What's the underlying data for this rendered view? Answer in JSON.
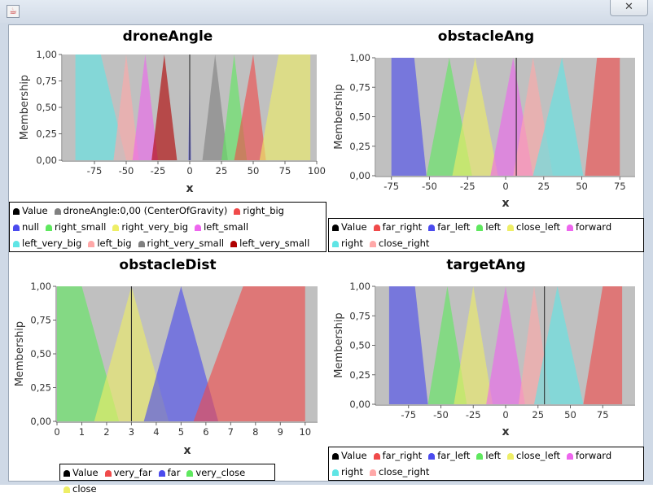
{
  "window": {
    "app_icon": "java-icon",
    "close_glyph": "✕"
  },
  "chart_data": [
    {
      "type": "area",
      "title": "droneAngle",
      "xlabel": "x",
      "ylabel": "Membership",
      "xlim": [
        -100,
        100
      ],
      "ylim": [
        0,
        1
      ],
      "xticks": [
        -75,
        -50,
        -25,
        0,
        25,
        50,
        75,
        100
      ],
      "xtick_labels": [
        "-75",
        "-50",
        "-25",
        "0",
        "25",
        "50",
        "75",
        "100"
      ],
      "yticks": [
        0,
        0.25,
        0.5,
        0.75,
        1
      ],
      "ytick_labels": [
        "0,00",
        "0,25",
        "0,50",
        "0,75",
        "1,00"
      ],
      "value_line": 0.0,
      "legend": [
        "Value",
        "droneAngle:0,00 (CenterOfGravity)",
        "right_big",
        "null",
        "right_small",
        "right_very_big",
        "left_small",
        "left_very_big",
        "left_big",
        "right_very_small",
        "left_very_small"
      ],
      "legend_colors": [
        "#000000",
        "#808080",
        "#f04a4a",
        "#4b4bee",
        "#5fe85f",
        "#eeee66",
        "#ee66ee",
        "#5fe5e5",
        "#ffa8a8",
        "#808080",
        "#b00000"
      ],
      "series": [
        {
          "name": "left_very_big",
          "x": [
            -90,
            -80,
            -70,
            -50
          ],
          "y": [
            1,
            1,
            1,
            0
          ],
          "color": "#5fe5e5"
        },
        {
          "name": "left_big",
          "x": [
            -60,
            -50,
            -40
          ],
          "y": [
            0,
            1,
            0
          ],
          "color": "#ffa8a8"
        },
        {
          "name": "left_small",
          "x": [
            -45,
            -35,
            -25
          ],
          "y": [
            0,
            1,
            0
          ],
          "color": "#ee66ee"
        },
        {
          "name": "left_very_small",
          "x": [
            -30,
            -20,
            -10
          ],
          "y": [
            0,
            1,
            0
          ],
          "color": "#b00000"
        },
        {
          "name": "null",
          "x": [
            -1,
            0,
            1
          ],
          "y": [
            0,
            1,
            0
          ],
          "color": "#4b4bee"
        },
        {
          "name": "right_very_small",
          "x": [
            10,
            20,
            30
          ],
          "y": [
            0,
            1,
            0
          ],
          "color": "#808080"
        },
        {
          "name": "right_small",
          "x": [
            25,
            35,
            45
          ],
          "y": [
            0,
            1,
            0
          ],
          "color": "#5fe85f"
        },
        {
          "name": "right_big",
          "x": [
            35,
            50,
            60
          ],
          "y": [
            0,
            1,
            0
          ],
          "color": "#f04a4a"
        },
        {
          "name": "right_very_big",
          "x": [
            55,
            70,
            95
          ],
          "y": [
            0,
            1,
            1
          ],
          "color": "#eeee66"
        }
      ]
    },
    {
      "type": "area",
      "title": "obstacleAng",
      "xlabel": "x",
      "ylabel": "Membership",
      "xlim": [
        -85,
        85
      ],
      "ylim": [
        0,
        1
      ],
      "xticks": [
        -75,
        -50,
        -25,
        0,
        25,
        50,
        75
      ],
      "xtick_labels": [
        "-75",
        "-50",
        "-25",
        "0",
        "25",
        "50",
        "75"
      ],
      "yticks": [
        0,
        0.25,
        0.5,
        0.75,
        1
      ],
      "ytick_labels": [
        "0,00",
        "0,25",
        "0,50",
        "0,75",
        "1,00"
      ],
      "value_line": 7,
      "legend": [
        "Value",
        "far_right",
        "far_left",
        "left",
        "close_left",
        "forward",
        "right",
        "close_right"
      ],
      "legend_colors": [
        "#000000",
        "#f04a4a",
        "#4b4bee",
        "#5fe85f",
        "#eeee66",
        "#ee66ee",
        "#5fe5e5",
        "#ffa8a8"
      ],
      "series": [
        {
          "name": "far_left",
          "x": [
            -75,
            -67,
            -60,
            -52
          ],
          "y": [
            1,
            1,
            1,
            0
          ],
          "color": "#4b4bee"
        },
        {
          "name": "left",
          "x": [
            -52,
            -37,
            -22
          ],
          "y": [
            0,
            1,
            0
          ],
          "color": "#5fe85f"
        },
        {
          "name": "close_left",
          "x": [
            -35,
            -20,
            -5
          ],
          "y": [
            0,
            1,
            0
          ],
          "color": "#eeee66"
        },
        {
          "name": "forward",
          "x": [
            -10,
            5,
            18
          ],
          "y": [
            0,
            1,
            0
          ],
          "color": "#ee66ee"
        },
        {
          "name": "close_right",
          "x": [
            5,
            18,
            31
          ],
          "y": [
            0,
            1,
            0
          ],
          "color": "#ffa8a8"
        },
        {
          "name": "right",
          "x": [
            18,
            37,
            51
          ],
          "y": [
            0,
            1,
            0
          ],
          "color": "#5fe5e5"
        },
        {
          "name": "far_right",
          "x": [
            52,
            60,
            75
          ],
          "y": [
            0,
            1,
            1
          ],
          "color": "#f04a4a"
        }
      ]
    },
    {
      "type": "area",
      "title": "obstacleDist",
      "xlabel": "x",
      "ylabel": "Membership",
      "xlim": [
        0,
        10.5
      ],
      "ylim": [
        0,
        1
      ],
      "xticks": [
        0,
        1,
        2,
        3,
        4,
        5,
        6,
        7,
        8,
        9,
        10
      ],
      "xtick_labels": [
        "0",
        "1",
        "2",
        "3",
        "4",
        "5",
        "6",
        "7",
        "8",
        "9",
        "10"
      ],
      "yticks": [
        0,
        0.25,
        0.5,
        0.75,
        1
      ],
      "ytick_labels": [
        "0,00",
        "0,25",
        "0,50",
        "0,75",
        "1,00"
      ],
      "value_line": 3,
      "legend": [
        "Value",
        "very_far",
        "far",
        "very_close",
        "close"
      ],
      "legend_colors": [
        "#000000",
        "#f04a4a",
        "#4b4bee",
        "#5fe85f",
        "#eeee66"
      ],
      "series": [
        {
          "name": "very_close",
          "x": [
            0,
            1,
            2.5
          ],
          "y": [
            1,
            1,
            0
          ],
          "color": "#5fe85f"
        },
        {
          "name": "close",
          "x": [
            1.5,
            3,
            4.5
          ],
          "y": [
            0,
            1,
            0
          ],
          "color": "#eeee66"
        },
        {
          "name": "far",
          "x": [
            3.5,
            5,
            6.5
          ],
          "y": [
            0,
            1,
            0
          ],
          "color": "#4b4bee"
        },
        {
          "name": "very_far",
          "x": [
            5.5,
            7.5,
            10
          ],
          "y": [
            0,
            1,
            1
          ],
          "color": "#f04a4a"
        }
      ]
    },
    {
      "type": "area",
      "title": "targetAng",
      "xlabel": "x",
      "ylabel": "Membership",
      "xlim": [
        -100,
        100
      ],
      "ylim": [
        0,
        1
      ],
      "xticks": [
        -75,
        -50,
        -25,
        0,
        25,
        50,
        75
      ],
      "xtick_labels": [
        "-75",
        "-50",
        "-25",
        "0",
        "25",
        "50",
        "75"
      ],
      "yticks": [
        0,
        0.25,
        0.5,
        0.75,
        1
      ],
      "ytick_labels": [
        "0,00",
        "0,25",
        "0,50",
        "0,75",
        "1,00"
      ],
      "value_line": 30,
      "legend": [
        "Value",
        "far_right",
        "far_left",
        "left",
        "close_left",
        "forward",
        "right",
        "close_right"
      ],
      "legend_colors": [
        "#000000",
        "#f04a4a",
        "#4b4bee",
        "#5fe85f",
        "#eeee66",
        "#ee66ee",
        "#5fe5e5",
        "#ffa8a8"
      ],
      "series": [
        {
          "name": "far_left",
          "x": [
            -90,
            -80,
            -70,
            -60
          ],
          "y": [
            1,
            1,
            1,
            0
          ],
          "color": "#4b4bee"
        },
        {
          "name": "left",
          "x": [
            -60,
            -45,
            -30
          ],
          "y": [
            0,
            1,
            0
          ],
          "color": "#5fe85f"
        },
        {
          "name": "close_left",
          "x": [
            -40,
            -25,
            -10
          ],
          "y": [
            0,
            1,
            0
          ],
          "color": "#eeee66"
        },
        {
          "name": "forward",
          "x": [
            -15,
            0,
            15
          ],
          "y": [
            0,
            1,
            0
          ],
          "color": "#ee66ee"
        },
        {
          "name": "close_right",
          "x": [
            10,
            22,
            35
          ],
          "y": [
            0,
            1,
            0
          ],
          "color": "#ffa8a8"
        },
        {
          "name": "right",
          "x": [
            22,
            40,
            60
          ],
          "y": [
            0,
            1,
            0
          ],
          "color": "#5fe5e5"
        },
        {
          "name": "far_right",
          "x": [
            60,
            75,
            90
          ],
          "y": [
            0,
            1,
            1
          ],
          "color": "#f04a4a"
        }
      ]
    }
  ]
}
